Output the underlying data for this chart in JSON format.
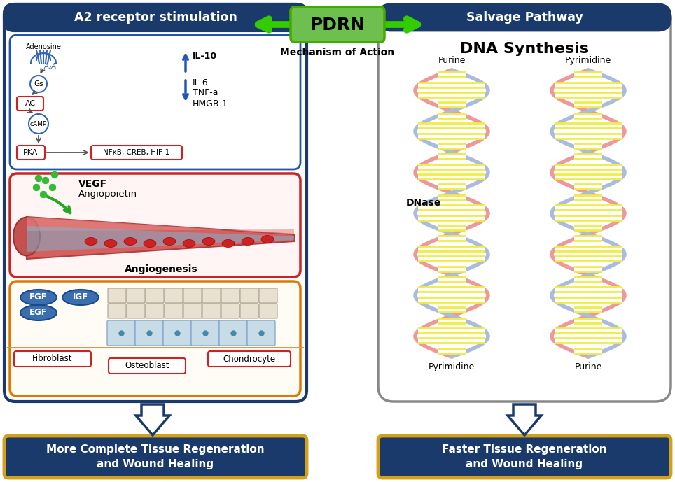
{
  "bg_color": "#ffffff",
  "left_panel_title": "A2 receptor stimulation",
  "left_panel_title_bg": "#1a3a6b",
  "left_panel_title_color": "#ffffff",
  "left_panel_border": "#1a3a6b",
  "right_panel_title": "Salvage Pathway",
  "right_panel_title_bg": "#1a3a6b",
  "right_panel_title_color": "#ffffff",
  "right_panel_border": "#888888",
  "pdrn_box_color": "#6dbf4e",
  "pdrn_text": "PDRN",
  "pdrn_subtext": "Mechanism of Action",
  "arrow_color": "#33cc00",
  "dna_title": "DNA Synthesis",
  "bottom_left_text": "More Complete Tissue Regeneration\nand Wound Healing",
  "bottom_right_text": "Faster Tissue Regeneration\nand Wound Healing",
  "bottom_box_bg": "#1a3a6b",
  "bottom_box_border": "#d4a017",
  "bottom_text_color": "#ffffff",
  "red_panel_border": "#cc2222",
  "orange_panel_border": "#e07800",
  "blue_oval_color": "#3a6eaf",
  "sig_border": "#2255aa",
  "cytokine_arrow_color": "#2255bb"
}
